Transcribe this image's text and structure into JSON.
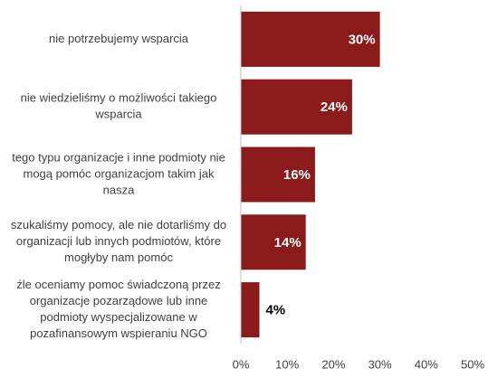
{
  "chart_data": {
    "type": "bar",
    "orientation": "horizontal",
    "categories": [
      "nie potrzebujemy wsparcia",
      "nie wiedzieliśmy o możliwości takiego wsparcia",
      "tego typu organizacje i inne podmioty nie mogą pomóc organizacjom takim jak nasza",
      "szukaliśmy pomocy, ale nie dotarliśmy do organizacji lub innych podmiotów, które mogłyby nam pomóc",
      "źle oceniamy pomoc świadczoną przez organizacje pozarządowe lub inne podmioty wyspecjalizowane w pozafinansowym wspieraniu NGO"
    ],
    "category_lines": [
      [
        "nie potrzebujemy wsparcia"
      ],
      [
        "nie wiedzieliśmy o możliwości takiego",
        "wsparcia"
      ],
      [
        "tego typu organizacje i inne podmioty nie",
        "mogą pomóc organizacjom takim jak",
        "nasza"
      ],
      [
        "szukaliśmy pomocy, ale nie dotarliśmy do",
        "organizacji lub innych podmiotów, które",
        "mogłyby nam pomóc"
      ],
      [
        "źle oceniamy pomoc świadczoną przez",
        "organizacje pozarządowe lub inne",
        "podmioty wyspecjalizowane w",
        "pozafinansowym wspieraniu NGO"
      ]
    ],
    "values": [
      30,
      24,
      16,
      14,
      4
    ],
    "value_labels": [
      "30%",
      "24%",
      "16%",
      "14%",
      "4%"
    ],
    "xlim": [
      0,
      50
    ],
    "ticks": [
      "0%",
      "10%",
      "20%",
      "30%",
      "40%",
      "50%"
    ],
    "tick_values": [
      0,
      10,
      20,
      30,
      40,
      50
    ],
    "grid": false,
    "bar_color": "#8B1A1A",
    "label_inside_color": "#ffffff",
    "label_outside_color": "#000000",
    "axis_color": "#bfbfbf"
  }
}
